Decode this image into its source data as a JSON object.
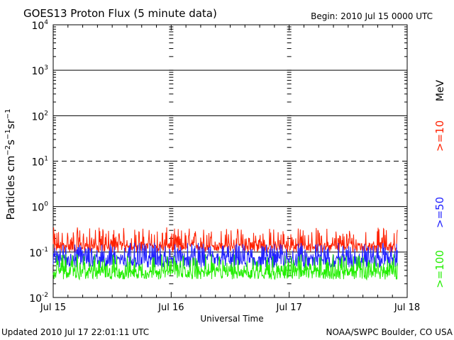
{
  "header": {
    "title": "GOES13 Proton Flux (5 minute data)",
    "begin": "Begin: 2010 Jul 15 0000 UTC"
  },
  "footer": {
    "updated": "Updated 2010 Jul 17 22:01:11 UTC",
    "credit": "NOAA/SWPC Boulder, CO USA"
  },
  "chart_data": {
    "type": "line",
    "title": "GOES13 Proton Flux (5 minute data)",
    "xlabel": "Universal Time",
    "ylabel": "Particles cm⁻²s⁻¹sr⁻¹",
    "y_scale": "log",
    "ylim": [
      0.01,
      10000
    ],
    "xlim_days": [
      0,
      3
    ],
    "x_ticks": [
      "Jul 15",
      "Jul 16",
      "Jul 17",
      "Jul 18"
    ],
    "y_ticks": [
      {
        "base": "10",
        "exp": "-2"
      },
      {
        "base": "10",
        "exp": "-1"
      },
      {
        "base": "10",
        "exp": "0"
      },
      {
        "base": "10",
        "exp": "1"
      },
      {
        "base": "10",
        "exp": "2"
      },
      {
        "base": "10",
        "exp": "3"
      },
      {
        "base": "10",
        "exp": "4"
      }
    ],
    "reference_lines": [
      {
        "value": 10,
        "style": "dashed"
      }
    ],
    "energy_unit": "MeV",
    "data_end_day": 2.917,
    "series": [
      {
        "name": ">=10",
        "color": "#ff2000",
        "baseline": 0.14,
        "low": 0.1,
        "high": 0.35
      },
      {
        "name": ">=50",
        "color": "#2020ff",
        "baseline": 0.075,
        "low": 0.045,
        "high": 0.16
      },
      {
        "name": ">=100",
        "color": "#22ee00",
        "baseline": 0.038,
        "low": 0.025,
        "high": 0.09
      }
    ]
  }
}
